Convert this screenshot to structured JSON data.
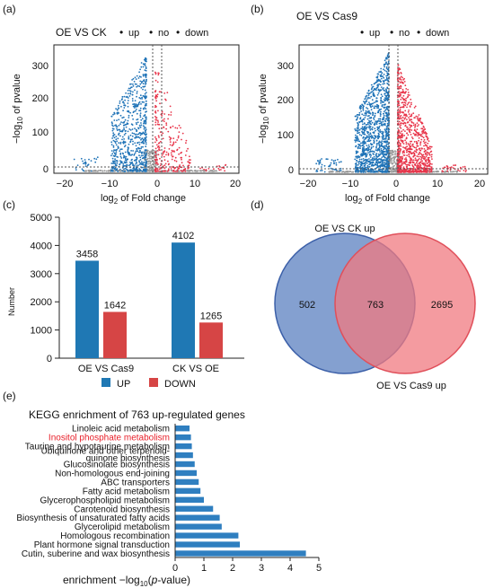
{
  "colors": {
    "up": "#e8354a",
    "no": "#9a9a9a",
    "down": "#1f73b7",
    "bar_up": "#1f78b4",
    "bar_down": "#d64545",
    "venn_left": "#6f8fc8",
    "venn_right": "#f07a80",
    "kegg_bar": "#2f7fc0",
    "highlight": "#e8202a"
  },
  "chart_data": [
    {
      "panel": "(a)",
      "type": "scatter",
      "title": "OE VS CK",
      "legend": [
        "up",
        "no",
        "down"
      ],
      "xlabel_main": "log",
      "xlabel_sub": "2",
      "xlabel_rest": " of Fold change",
      "ylabel_pre": "−log",
      "ylabel_sub": "10",
      "ylabel_post": " of pvalue",
      "xticks": [
        "−20",
        "−10",
        "0",
        "10",
        "20"
      ],
      "yticks": [
        "0",
        "100",
        "200",
        "300"
      ],
      "xlim": [
        -22,
        20
      ],
      "ylim": [
        -5,
        355
      ],
      "threshold_lines": {
        "x": [
          -1,
          1
        ],
        "y": 1.3
      }
    },
    {
      "panel": "(b)",
      "type": "scatter",
      "title": "OE VS Cas9",
      "legend": [
        "up",
        "no",
        "down"
      ],
      "xlabel_main": "log",
      "xlabel_sub": "2",
      "xlabel_rest": " of Fold change",
      "ylabel_pre": "−log",
      "ylabel_sub": "10",
      "ylabel_post": " of pvalue",
      "xticks": [
        "−20",
        "−10",
        "0",
        "10",
        "20"
      ],
      "yticks": [
        "0",
        "100",
        "200",
        "300"
      ],
      "xlim": [
        -22,
        22
      ],
      "ylim": [
        -5,
        350
      ],
      "threshold_lines": {
        "x": [
          -1,
          1
        ],
        "y": 1.3
      }
    },
    {
      "panel": "(c)",
      "type": "bar",
      "categories": [
        "OE VS Cas9",
        "CK VS OE"
      ],
      "series": [
        {
          "name": "UP",
          "values": [
            3458,
            4102
          ]
        },
        {
          "name": "DOWN",
          "values": [
            1642,
            1265
          ]
        }
      ],
      "ylabel": "Number",
      "yticks": [
        "0",
        "1000",
        "2000",
        "3000",
        "4000",
        "5000"
      ],
      "ylim": [
        0,
        5000
      ]
    },
    {
      "panel": "(d)",
      "type": "venn",
      "sets": [
        {
          "name": "OE VS CK up",
          "only": 502
        },
        {
          "name": "OE VS Cas9 up",
          "only": 2695
        }
      ],
      "intersection": 763
    },
    {
      "panel": "(e)",
      "type": "bar",
      "orientation": "horizontal",
      "title": "KEGG enrichment of 763 up-regulated genes",
      "xlabel_pre": "enrichment −log",
      "xlabel_sub": "10",
      "xlabel_open": "(",
      "xlabel_italic": "p",
      "xlabel_post": "-value)",
      "xticks": [
        "0",
        "1",
        "2",
        "3",
        "4",
        "5"
      ],
      "xlim": [
        0,
        5
      ],
      "categories": [
        {
          "label": [
            "Linoleic acid metabolism"
          ],
          "value": 0.5
        },
        {
          "label": [
            "Inositol phosphate metabolism"
          ],
          "value": 0.55,
          "highlight": true
        },
        {
          "label": [
            "Taurine and hypotaurine metabolism"
          ],
          "value": 0.58
        },
        {
          "label": [
            "Ubiquinone and other terpenoid-",
            "quinone biosynthesis"
          ],
          "value": 0.62
        },
        {
          "label": [
            "Glucosinolate biosynthesis"
          ],
          "value": 0.68
        },
        {
          "label": [
            "Non-homologous end-joining"
          ],
          "value": 0.75
        },
        {
          "label": [
            "ABC transporters"
          ],
          "value": 0.82
        },
        {
          "label": [
            "Fatty acid metabolism"
          ],
          "value": 0.88
        },
        {
          "label": [
            "Glycerophospholipid metabolism"
          ],
          "value": 1.0
        },
        {
          "label": [
            "Carotenoid biosynthesis"
          ],
          "value": 1.32
        },
        {
          "label": [
            "Biosynthesis of unsaturated fatty acids"
          ],
          "value": 1.55
        },
        {
          "label": [
            "Glycerolipid metabolism"
          ],
          "value": 1.62
        },
        {
          "label": [
            "Homologous recombination"
          ],
          "value": 2.2
        },
        {
          "label": [
            "Plant hormone signal transduction"
          ],
          "value": 2.25
        },
        {
          "label": [
            "Cutin, suberine and wax biosynthesis"
          ],
          "value": 4.55
        }
      ]
    }
  ]
}
